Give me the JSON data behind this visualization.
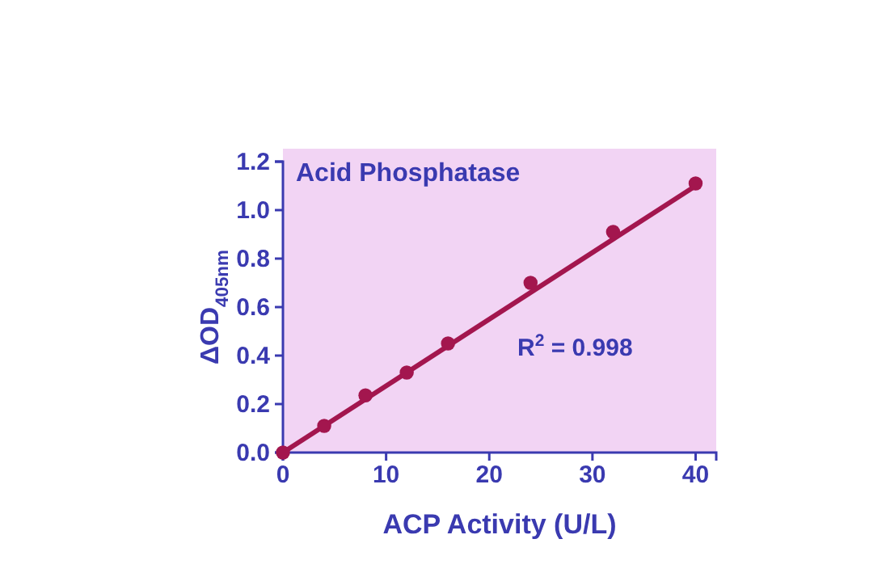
{
  "chart_data": {
    "type": "scatter",
    "title": "Acid Phosphatase",
    "xlabel": "ACP Activity (U/L)",
    "ylabel": "ΔOD$_{405nm}$",
    "annotations": [
      "R$^{2}$ = 0.998"
    ],
    "grid": false,
    "xlim": [
      0,
      42
    ],
    "xticks": [
      0,
      10,
      20,
      30,
      40
    ],
    "ylim": [
      0,
      1.2
    ],
    "yticks": [
      {
        "value": 0,
        "label": "0.0"
      },
      {
        "value": 0.2,
        "label": "0.2"
      },
      {
        "value": 0.4,
        "label": "0.4"
      },
      {
        "value": 0.6,
        "label": "0.6"
      },
      {
        "value": 0.8,
        "label": "0.8"
      },
      {
        "value": 1.0,
        "label": "1.0"
      },
      {
        "value": 1.2,
        "label": "1.2"
      }
    ],
    "series": [
      {
        "marker": "circle",
        "color": "#a3164e",
        "x": [
          0,
          4,
          8,
          12,
          16,
          24,
          32,
          40
        ],
        "values": [
          0,
          0.11,
          0.236,
          0.33,
          0.45,
          0.7,
          0.91,
          1.11
        ]
      },
      {
        "type": "line",
        "color": "#a3164e",
        "x": [
          0,
          40
        ],
        "values": [
          0,
          1.1
        ]
      }
    ]
  }
}
